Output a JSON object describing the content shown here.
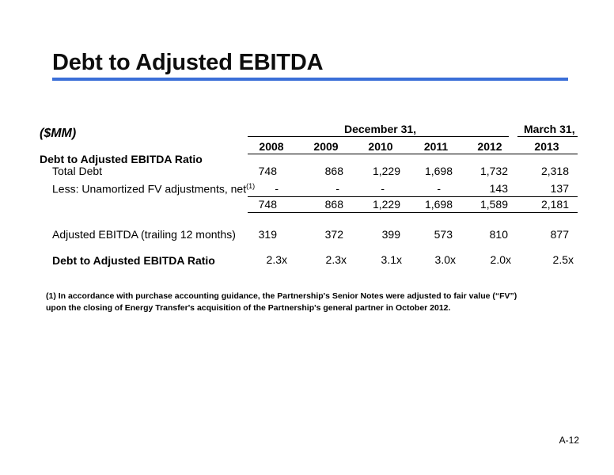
{
  "title": "Debt to Adjusted EBITDA",
  "units": "($MM)",
  "header": {
    "period1": "December 31,",
    "period2": "March 31,",
    "years": [
      "2008",
      "2009",
      "2010",
      "2011",
      "2012",
      "2013"
    ]
  },
  "section_title": "Debt to Adjusted EBITDA Ratio",
  "rows": {
    "total_debt": {
      "label": "Total Debt",
      "values": [
        "748",
        "868",
        "1,229",
        "1,698",
        "1,732",
        "2,318"
      ]
    },
    "fv_adj": {
      "label": "Less: Unamortized FV adjustments, net",
      "sup": "(1)",
      "values": [
        "-",
        "-",
        "-",
        "-",
        "143",
        "137"
      ]
    },
    "net_debt": {
      "values": [
        "748",
        "868",
        "1,229",
        "1,698",
        "1,589",
        "2,181"
      ]
    },
    "ebitda": {
      "label": "Adjusted EBITDA (trailing 12 months)",
      "values": [
        "319",
        "372",
        "399",
        "573",
        "810",
        "877"
      ]
    },
    "ratio": {
      "label": "Debt to Adjusted EBITDA Ratio",
      "values": [
        "2.3x",
        "2.3x",
        "3.1x",
        "3.0x",
        "2.0x",
        "2.5x"
      ]
    }
  },
  "footnote": {
    "line1": "(1)  In accordance with purchase accounting guidance, the Partnership's Senior Notes were adjusted to fair value (“FV”)",
    "line2": "upon the closing of Energy Transfer's acquisition of the Partnership's general partner in October 2012."
  },
  "page_number": "A-12"
}
